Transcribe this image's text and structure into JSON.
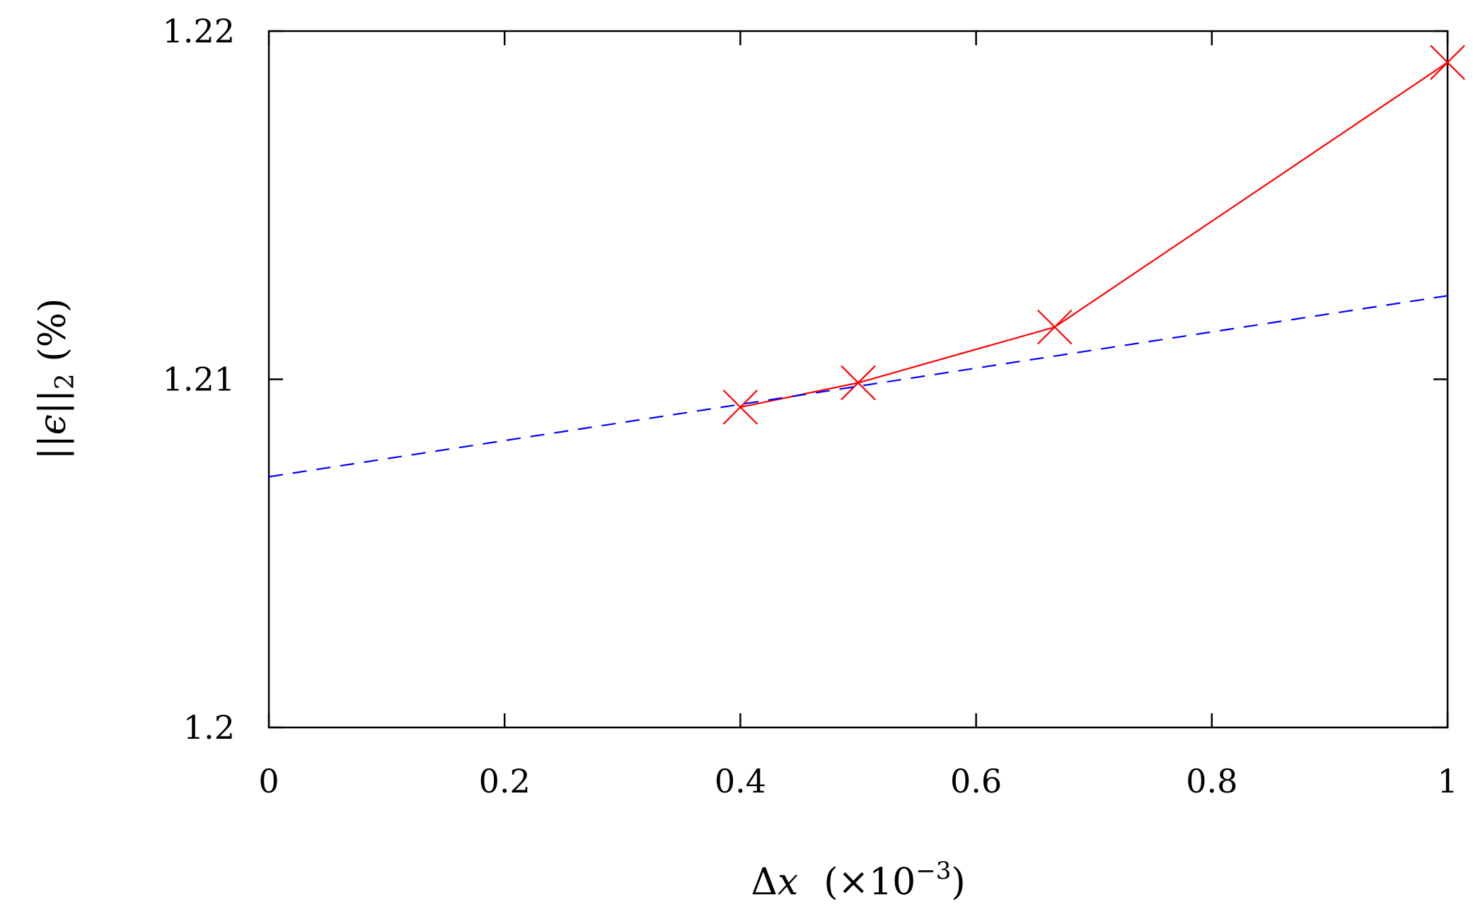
{
  "chart_data": {
    "type": "line",
    "title": "",
    "xlabel": {
      "symbol": "Δ",
      "var": "x",
      "scale_prefix": "(×10",
      "scale_exp": "−3",
      "scale_suffix": ")"
    },
    "ylabel": {
      "open": "||",
      "var": "ϵ",
      "close": "||",
      "sub": "2",
      "unit": " (%)"
    },
    "xlim": [
      0,
      1
    ],
    "ylim": [
      1.2,
      1.22
    ],
    "xticks": [
      0,
      0.2,
      0.4,
      0.6,
      0.8,
      1
    ],
    "xtick_labels": [
      "0",
      "0.2",
      "0.4",
      "0.6",
      "0.8",
      "1"
    ],
    "yticks": [
      1.2,
      1.21,
      1.22
    ],
    "ytick_labels": [
      "1.2",
      "1.21",
      "1.22"
    ],
    "grid": false,
    "series": [
      {
        "style": "solid-with-x-markers",
        "color": "#ff0000",
        "x": [
          0.4,
          0.5,
          0.6667,
          1.0
        ],
        "y": [
          1.2092,
          1.2099,
          1.2115,
          1.2191
        ]
      },
      {
        "style": "dashed",
        "color": "#0000ff",
        "x": [
          0,
          1
        ],
        "y": [
          1.2072,
          1.2124
        ]
      }
    ]
  }
}
